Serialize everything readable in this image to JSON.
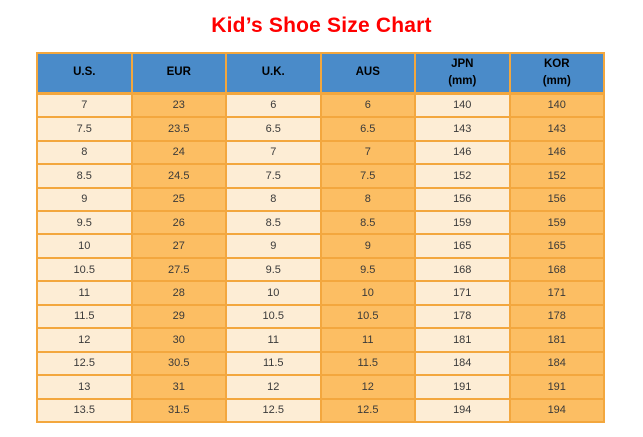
{
  "chart_data": {
    "type": "table",
    "title": "Kid’s Shoe Size Chart",
    "columns": [
      "U.S.",
      "EUR",
      "U.K.",
      "AUS",
      "JPN\n(mm)",
      "KOR\n(mm)"
    ],
    "rows": [
      [
        "7",
        "23",
        "6",
        "6",
        "140",
        "140"
      ],
      [
        "7.5",
        "23.5",
        "6.5",
        "6.5",
        "143",
        "143"
      ],
      [
        "8",
        "24",
        "7",
        "7",
        "146",
        "146"
      ],
      [
        "8.5",
        "24.5",
        "7.5",
        "7.5",
        "152",
        "152"
      ],
      [
        "9",
        "25",
        "8",
        "8",
        "156",
        "156"
      ],
      [
        "9.5",
        "26",
        "8.5",
        "8.5",
        "159",
        "159"
      ],
      [
        "10",
        "27",
        "9",
        "9",
        "165",
        "165"
      ],
      [
        "10.5",
        "27.5",
        "9.5",
        "9.5",
        "168",
        "168"
      ],
      [
        "11",
        "28",
        "10",
        "10",
        "171",
        "171"
      ],
      [
        "11.5",
        "29",
        "10.5",
        "10.5",
        "178",
        "178"
      ],
      [
        "12",
        "30",
        "11",
        "11",
        "181",
        "181"
      ],
      [
        "12.5",
        "30.5",
        "11.5",
        "11.5",
        "184",
        "184"
      ],
      [
        "13",
        "31",
        "12",
        "12",
        "191",
        "191"
      ],
      [
        "13.5",
        "31.5",
        "12.5",
        "12.5",
        "194",
        "194"
      ]
    ],
    "layout": {
      "column_color_pattern": [
        "light",
        "orange",
        "light",
        "orange",
        "light",
        "orange"
      ],
      "grid": true
    }
  },
  "colors": {
    "title_red": "#FF0000",
    "header_blue": "#4A8BC9",
    "column_light": "#FDEDD5",
    "column_orange": "#FCBE63",
    "border_orange": "#F3A73E",
    "header_text": "#000000",
    "cell_text": "#3A3A3A"
  }
}
